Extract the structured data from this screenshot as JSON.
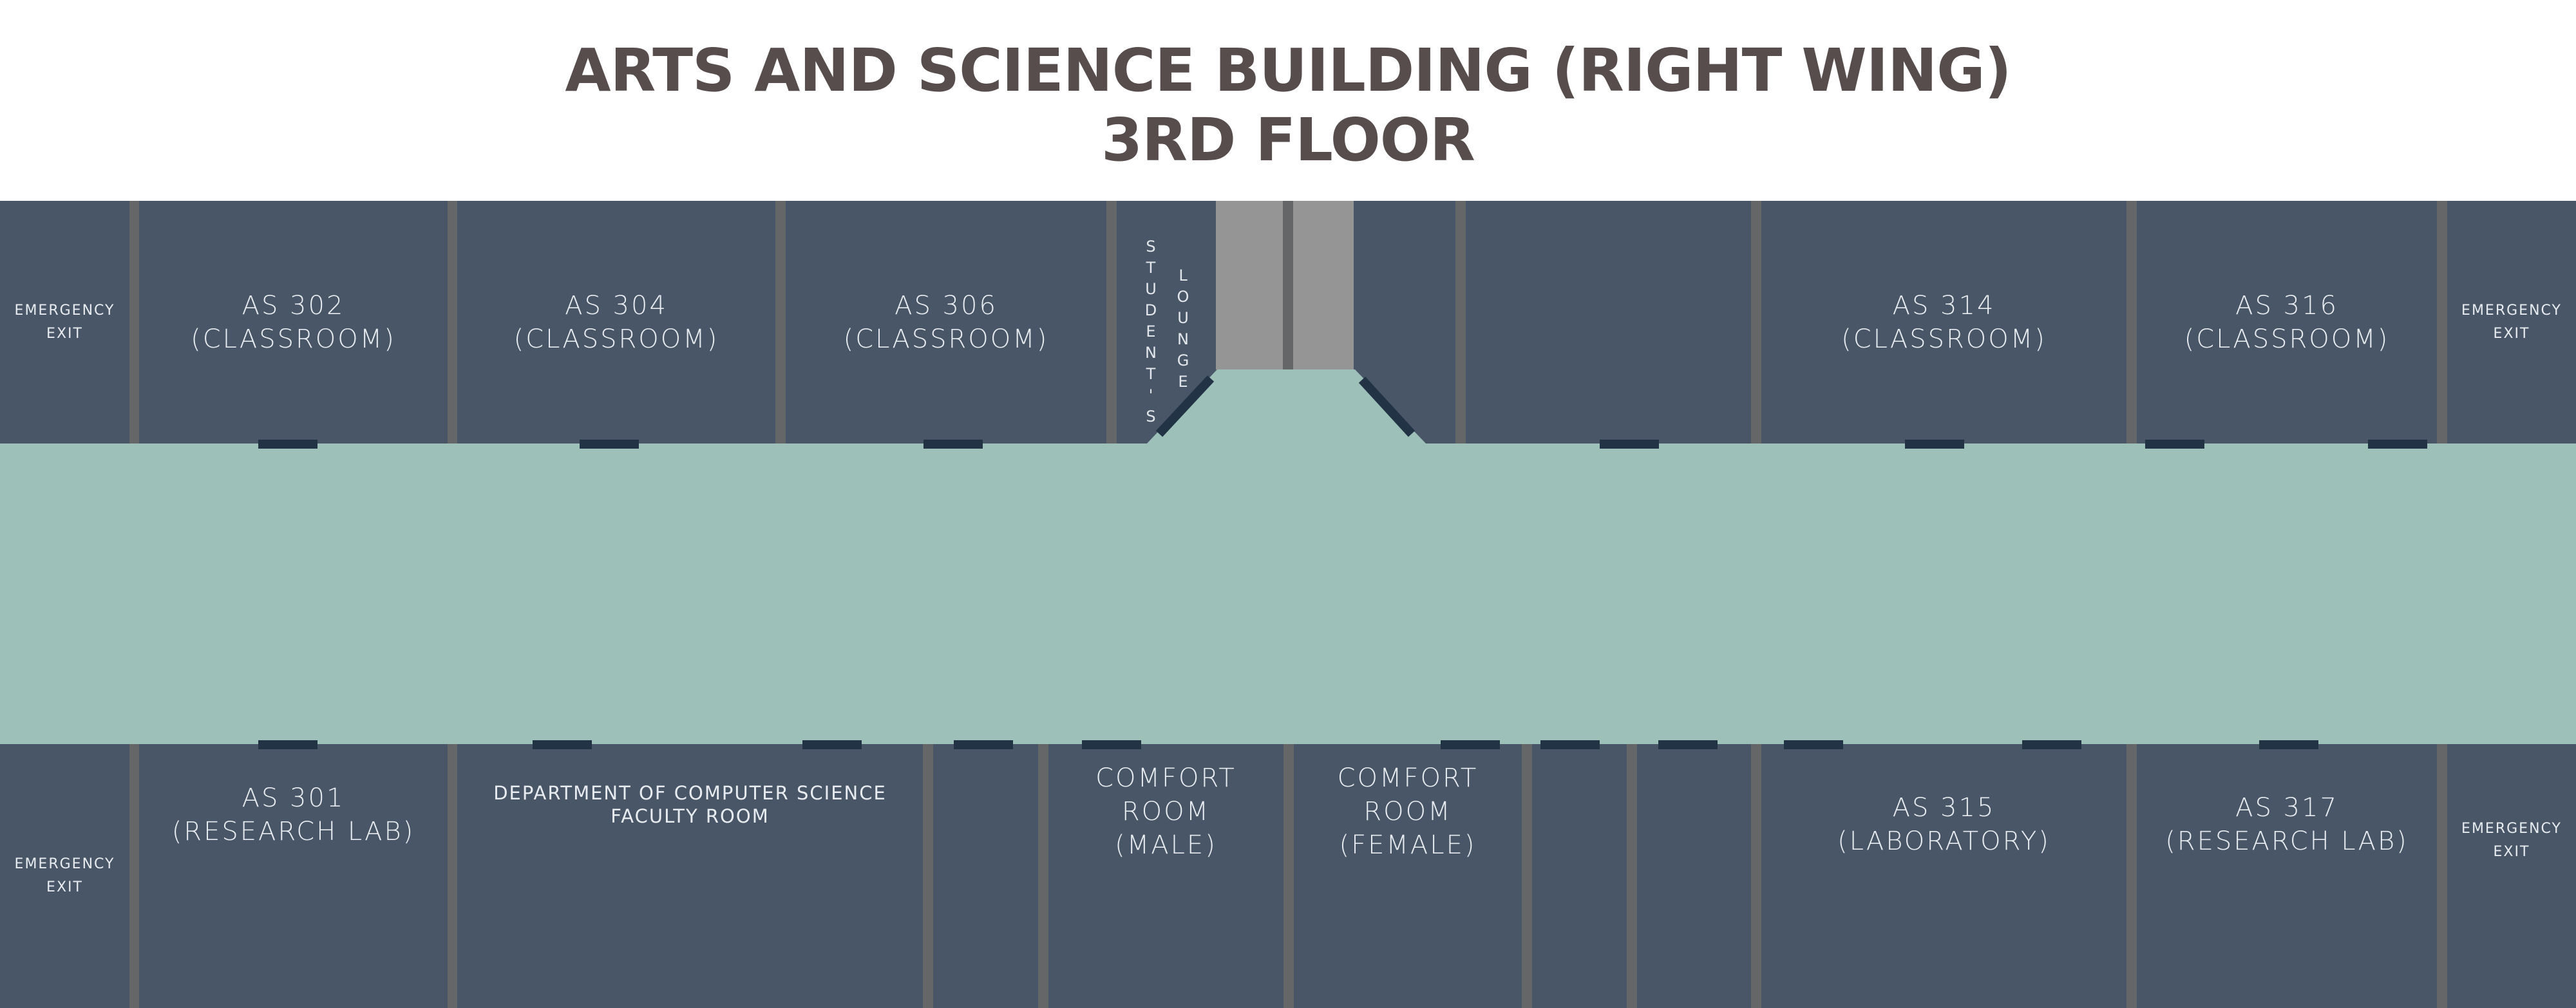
{
  "header": {
    "title_line1": "ARTS AND SCIENCE BUILDING (RIGHT WING)",
    "title_line2": "3RD FLOOR"
  },
  "colors": {
    "room": "#485668",
    "hallway": "#9dc1b9",
    "walls": "#656667",
    "doors": "#223346",
    "elevator": "#969595",
    "title": "#574d4d"
  },
  "top_rooms": {
    "exit_left": {
      "l1": "EMERGENCY",
      "l2": "EXIT"
    },
    "as302": {
      "l1": "AS 302",
      "l2": "(CLASSROOM)"
    },
    "as304": {
      "l1": "AS 304",
      "l2": "(CLASSROOM)"
    },
    "as306": {
      "l1": "AS 306",
      "l2": "(CLASSROOM)"
    },
    "lounge": {
      "word1": [
        "S",
        "T",
        "U",
        "D",
        "E",
        "N",
        "T",
        "'",
        "S"
      ],
      "word2": [
        "L",
        "O",
        "U",
        "N",
        "G",
        "E"
      ]
    },
    "as314": {
      "l1": "AS 314",
      "l2": "(CLASSROOM)"
    },
    "as316": {
      "l1": "AS 316",
      "l2": "(CLASSROOM)"
    },
    "exit_right": {
      "l1": "EMERGENCY",
      "l2": "EXIT"
    }
  },
  "bottom_rooms": {
    "exit_left": {
      "l1": "EMERGENCY",
      "l2": "EXIT"
    },
    "as301": {
      "l1": "AS 301",
      "l2": "(RESEARCH LAB)"
    },
    "dept": {
      "l1": "DEPARTMENT OF COMPUTER SCIENCE",
      "l2": "FACULTY ROOM"
    },
    "cr_male": {
      "l1": "COMFORT",
      "l2": "ROOM",
      "l3": "(MALE)"
    },
    "cr_female": {
      "l1": "COMFORT",
      "l2": "ROOM",
      "l3": "(FEMALE)"
    },
    "as315": {
      "l1": "AS 315",
      "l2": "(LABORATORY)"
    },
    "as317": {
      "l1": "AS 317",
      "l2": "(RESEARCH LAB)"
    },
    "exit_right": {
      "l1": "EMERGENCY",
      "l2": "EXIT"
    }
  }
}
